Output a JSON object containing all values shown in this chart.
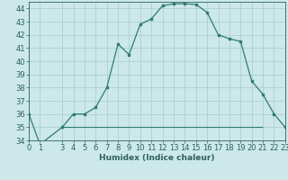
{
  "title": "",
  "xlabel": "Humidex (Indice chaleur)",
  "ylabel": "",
  "background_color": "#cce8e8",
  "line_color": "#2e7d6b",
  "x": [
    0,
    1,
    3,
    4,
    5,
    6,
    7,
    8,
    9,
    10,
    11,
    12,
    13,
    14,
    15,
    16,
    17,
    18,
    19,
    20,
    21,
    22,
    23
  ],
  "y": [
    36.0,
    33.7,
    35.0,
    36.0,
    36.0,
    36.5,
    38.0,
    41.3,
    40.5,
    42.8,
    43.2,
    44.2,
    44.35,
    44.35,
    44.3,
    43.7,
    42.0,
    41.7,
    41.5,
    38.5,
    37.5,
    36.0,
    35.0
  ],
  "flat_x_start": 3,
  "flat_x_end": 21,
  "flat_y": 35.0,
  "xlim": [
    0,
    23
  ],
  "ylim": [
    34,
    44.5
  ],
  "yticks": [
    34,
    35,
    36,
    37,
    38,
    39,
    40,
    41,
    42,
    43,
    44
  ],
  "xticks": [
    0,
    1,
    3,
    4,
    5,
    6,
    7,
    8,
    9,
    10,
    11,
    12,
    13,
    14,
    15,
    16,
    17,
    18,
    19,
    20,
    21,
    22,
    23
  ],
  "grid_color": "#a8cccc",
  "axis_label_fontsize": 6.5,
  "tick_fontsize": 6.0,
  "tick_color": "#2e6060",
  "spine_color": "#2e6060"
}
